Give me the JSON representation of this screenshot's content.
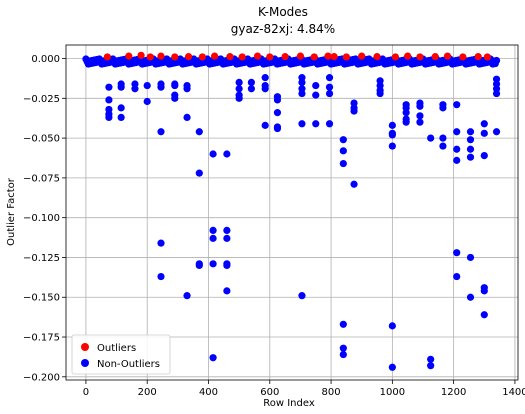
{
  "chart_data": {
    "type": "scatter",
    "title": "K-Modes",
    "subtitle": "gyaz-82xj: 4.84%",
    "xlabel": "Row Index",
    "ylabel": "Outlier Factor",
    "xlim": [
      -65,
      1410
    ],
    "ylim": [
      -0.202,
      0.0085
    ],
    "xticks": [
      0,
      200,
      400,
      600,
      800,
      1000,
      1200,
      1400
    ],
    "yticks": [
      0.0,
      -0.025,
      -0.05,
      -0.075,
      -0.1,
      -0.125,
      -0.15,
      -0.175,
      -0.2
    ],
    "ytick_labels": [
      "0.000",
      "−0.025",
      "−0.050",
      "−0.075",
      "−0.100",
      "−0.125",
      "−0.150",
      "−0.175",
      "−0.200"
    ],
    "grid": true,
    "legend_position": "lower-left",
    "colors": {
      "outliers": "#ff0000",
      "non_outliers": "#0000ff"
    },
    "series": [
      {
        "name": "Outliers",
        "color": "#ff0000",
        "points": [
          [
            70,
            0.001
          ],
          [
            140,
            0.0015
          ],
          [
            180,
            0.002
          ],
          [
            210,
            0.001
          ],
          [
            245,
            0.0015
          ],
          [
            290,
            0.001
          ],
          [
            335,
            0.0012
          ],
          [
            380,
            0.001
          ],
          [
            420,
            0.0015
          ],
          [
            470,
            0.0012
          ],
          [
            510,
            0.001
          ],
          [
            560,
            0.0015
          ],
          [
            600,
            0.001
          ],
          [
            650,
            0.0012
          ],
          [
            700,
            0.0015
          ],
          [
            745,
            0.001
          ],
          [
            790,
            0.0015
          ],
          [
            810,
            0.0012
          ],
          [
            850,
            0.001
          ],
          [
            900,
            0.0015
          ],
          [
            950,
            0.0012
          ],
          [
            1010,
            0.001
          ],
          [
            1050,
            0.0015
          ],
          [
            1090,
            0.001
          ],
          [
            1140,
            0.0012
          ],
          [
            1180,
            0.0015
          ],
          [
            1230,
            0.001
          ],
          [
            1280,
            0.0012
          ],
          [
            1310,
            0.001
          ]
        ]
      },
      {
        "name": "Non-Outliers",
        "color": "#0000ff",
        "points": [
          [
            75,
            -0.018
          ],
          [
            75,
            -0.026
          ],
          [
            75,
            -0.032
          ],
          [
            75,
            -0.035
          ],
          [
            75,
            -0.037
          ],
          [
            115,
            -0.016
          ],
          [
            115,
            -0.018
          ],
          [
            115,
            -0.031
          ],
          [
            115,
            -0.037
          ],
          [
            160,
            -0.016
          ],
          [
            160,
            -0.019
          ],
          [
            200,
            -0.017
          ],
          [
            200,
            -0.027
          ],
          [
            245,
            -0.016
          ],
          [
            245,
            -0.018
          ],
          [
            245,
            -0.046
          ],
          [
            245,
            -0.116
          ],
          [
            245,
            -0.137
          ],
          [
            290,
            -0.016
          ],
          [
            290,
            -0.017
          ],
          [
            290,
            -0.023
          ],
          [
            290,
            -0.025
          ],
          [
            330,
            -0.017
          ],
          [
            330,
            -0.019
          ],
          [
            330,
            -0.037
          ],
          [
            330,
            -0.149
          ],
          [
            370,
            -0.046
          ],
          [
            370,
            -0.072
          ],
          [
            370,
            -0.129
          ],
          [
            370,
            -0.13
          ],
          [
            415,
            -0.06
          ],
          [
            415,
            -0.108
          ],
          [
            415,
            -0.113
          ],
          [
            415,
            -0.129
          ],
          [
            415,
            -0.188
          ],
          [
            460,
            -0.06
          ],
          [
            460,
            -0.108
          ],
          [
            460,
            -0.113
          ],
          [
            460,
            -0.129
          ],
          [
            460,
            -0.13
          ],
          [
            460,
            -0.146
          ],
          [
            500,
            -0.015
          ],
          [
            500,
            -0.019
          ],
          [
            500,
            -0.023
          ],
          [
            500,
            -0.025
          ],
          [
            540,
            -0.015
          ],
          [
            540,
            -0.019
          ],
          [
            585,
            -0.012
          ],
          [
            585,
            -0.017
          ],
          [
            585,
            -0.019
          ],
          [
            585,
            -0.042
          ],
          [
            625,
            -0.024
          ],
          [
            625,
            -0.026
          ],
          [
            625,
            -0.034
          ],
          [
            625,
            -0.043
          ],
          [
            625,
            -0.044
          ],
          [
            705,
            -0.012
          ],
          [
            705,
            -0.015
          ],
          [
            705,
            -0.019
          ],
          [
            705,
            -0.022
          ],
          [
            705,
            -0.041
          ],
          [
            705,
            -0.149
          ],
          [
            750,
            -0.017
          ],
          [
            750,
            -0.023
          ],
          [
            750,
            -0.041
          ],
          [
            795,
            -0.012
          ],
          [
            795,
            -0.018
          ],
          [
            795,
            -0.022
          ],
          [
            795,
            -0.041
          ],
          [
            840,
            -0.051
          ],
          [
            840,
            -0.058
          ],
          [
            840,
            -0.066
          ],
          [
            840,
            -0.167
          ],
          [
            840,
            -0.182
          ],
          [
            840,
            -0.186
          ],
          [
            875,
            -0.028
          ],
          [
            875,
            -0.031
          ],
          [
            875,
            -0.033
          ],
          [
            875,
            -0.079
          ],
          [
            960,
            -0.014
          ],
          [
            960,
            -0.017
          ],
          [
            960,
            -0.02
          ],
          [
            960,
            -0.022
          ],
          [
            1000,
            -0.042
          ],
          [
            1000,
            -0.047
          ],
          [
            1000,
            -0.048
          ],
          [
            1000,
            -0.055
          ],
          [
            1000,
            -0.168
          ],
          [
            1000,
            -0.194
          ],
          [
            1045,
            -0.029
          ],
          [
            1045,
            -0.031
          ],
          [
            1045,
            -0.034
          ],
          [
            1045,
            -0.038
          ],
          [
            1045,
            -0.04
          ],
          [
            1090,
            -0.028
          ],
          [
            1090,
            -0.03
          ],
          [
            1090,
            -0.036
          ],
          [
            1090,
            -0.04
          ],
          [
            1125,
            -0.05
          ],
          [
            1125,
            -0.189
          ],
          [
            1125,
            -0.193
          ],
          [
            1165,
            -0.029
          ],
          [
            1165,
            -0.031
          ],
          [
            1165,
            -0.05
          ],
          [
            1165,
            -0.055
          ],
          [
            1210,
            -0.029
          ],
          [
            1210,
            -0.046
          ],
          [
            1210,
            -0.057
          ],
          [
            1210,
            -0.064
          ],
          [
            1210,
            -0.122
          ],
          [
            1210,
            -0.137
          ],
          [
            1255,
            -0.046
          ],
          [
            1255,
            -0.051
          ],
          [
            1255,
            -0.057
          ],
          [
            1255,
            -0.062
          ],
          [
            1255,
            -0.125
          ],
          [
            1255,
            -0.15
          ],
          [
            1300,
            -0.041
          ],
          [
            1300,
            -0.047
          ],
          [
            1300,
            -0.061
          ],
          [
            1300,
            -0.144
          ],
          [
            1300,
            -0.146
          ],
          [
            1300,
            -0.161
          ],
          [
            1340,
            -0.013
          ],
          [
            1340,
            -0.016
          ],
          [
            1340,
            -0.019
          ],
          [
            1340,
            -0.022
          ],
          [
            1340,
            -0.046
          ]
        ]
      }
    ]
  }
}
